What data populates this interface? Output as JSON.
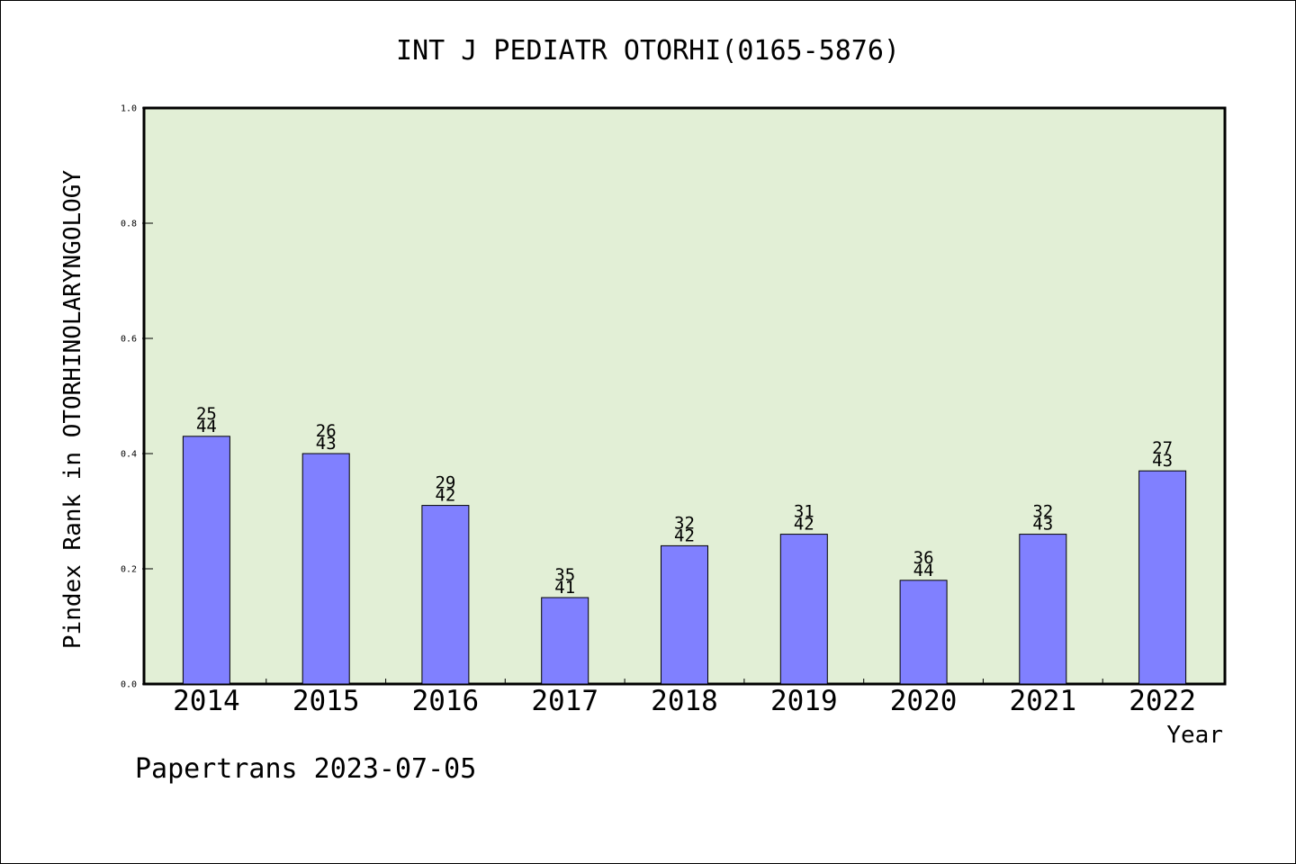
{
  "chart_data": {
    "type": "bar",
    "title": "INT J PEDIATR OTORHI(0165-5876)",
    "ylabel": "Pindex Rank in OTORHINOLARYNGOLOGY",
    "xlabel": "Year",
    "categories": [
      "2014",
      "2015",
      "2016",
      "2017",
      "2018",
      "2019",
      "2020",
      "2021",
      "2022"
    ],
    "values": [
      0.43,
      0.4,
      0.31,
      0.15,
      0.24,
      0.26,
      0.18,
      0.26,
      0.37
    ],
    "rank_labels": [
      "25",
      "26",
      "29",
      "35",
      "32",
      "31",
      "36",
      "32",
      "27"
    ],
    "total_labels": [
      "44",
      "43",
      "42",
      "41",
      "42",
      "42",
      "44",
      "43",
      "43"
    ],
    "ylim": [
      0,
      1.0
    ],
    "yticks": [
      "0.0",
      "0.2",
      "0.4",
      "0.6",
      "0.8",
      "1.0"
    ],
    "ytick_values": [
      0,
      0.2,
      0.4,
      0.6,
      0.8,
      1.0
    ],
    "grid": false,
    "colors": {
      "plot_background": "#e2efd6",
      "bar_fill": "#8080ff",
      "bar_stroke": "#000000"
    }
  },
  "footer": {
    "watermark": "Papertrans 2023-07-05"
  }
}
